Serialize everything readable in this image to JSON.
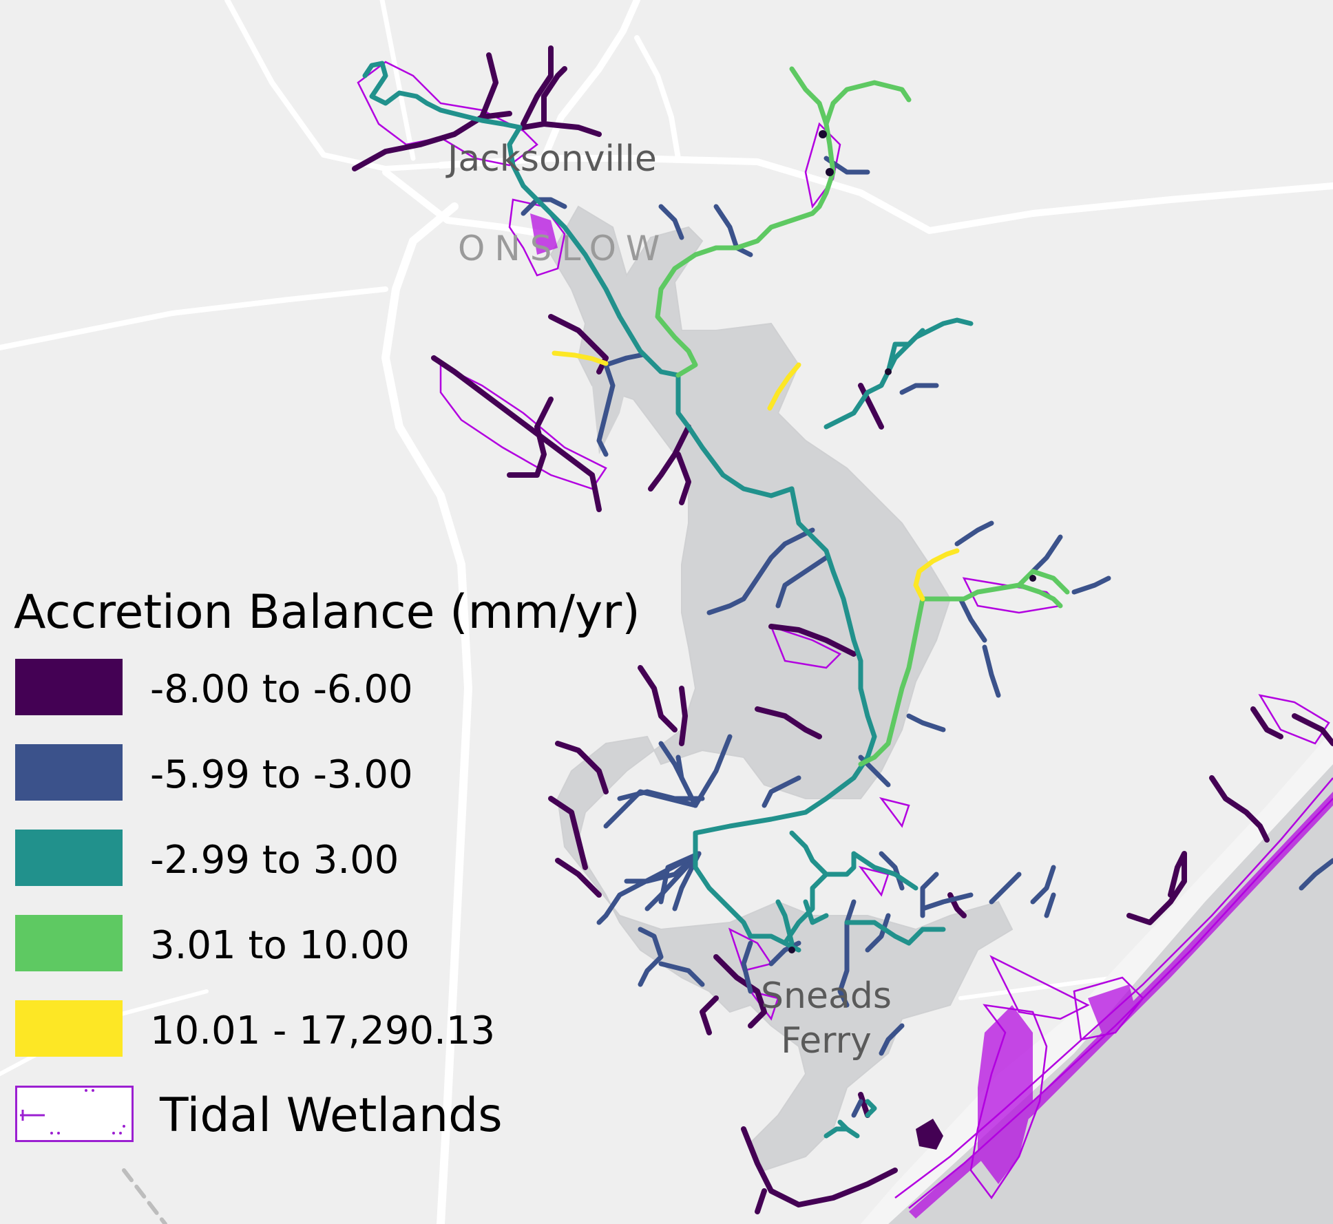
{
  "map": {
    "places": [
      {
        "id": "jacksonville",
        "label": "Jacksonville"
      },
      {
        "id": "onslow",
        "label": "ONSLOW"
      },
      {
        "id": "sneads-ferry",
        "label": "Sneads\nFerry"
      }
    ]
  },
  "legend": {
    "title": "Accretion Balance (mm/yr)",
    "classes": [
      {
        "label": "-8.00 to -6.00",
        "color": "#440154"
      },
      {
        "label": "-5.99 to -3.00",
        "color": "#3b528b"
      },
      {
        "label": "-2.99 to 3.00",
        "color": "#21918c"
      },
      {
        "label": "3.01 to 10.00",
        "color": "#5ec962"
      },
      {
        "label": "10.01 - 17,290.13",
        "color": "#fde725"
      }
    ],
    "wetlands": {
      "label": "Tidal Wetlands",
      "color": "#9b1fd1"
    }
  }
}
